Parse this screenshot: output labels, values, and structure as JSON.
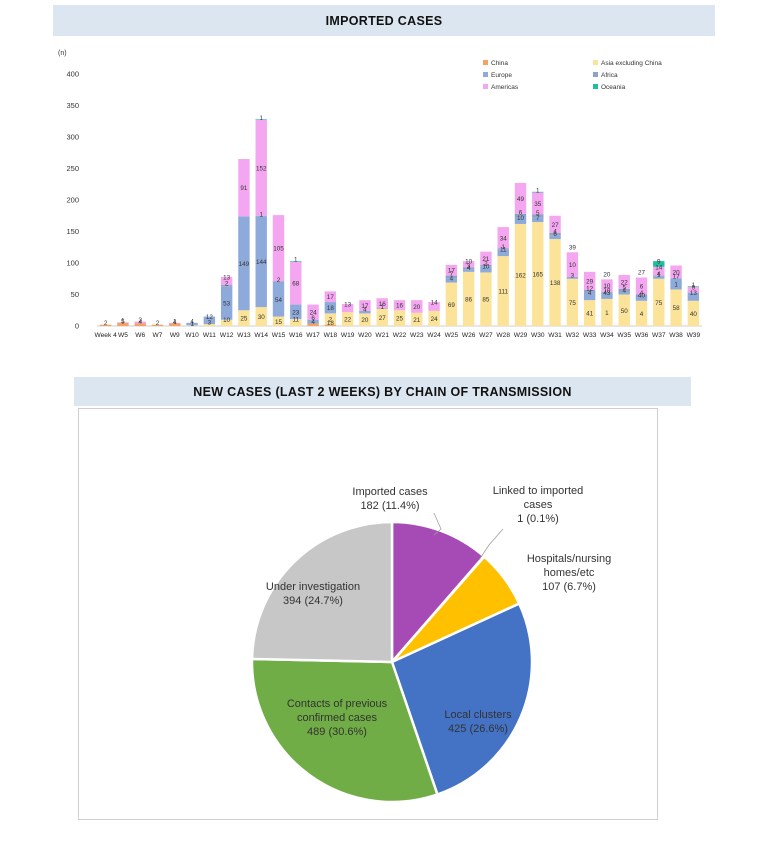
{
  "bar_title": "IMPORTED CASES",
  "pie_title": "NEW CASES (LAST 2 WEEKS) BY CHAIN OF TRANSMISSION",
  "chart_data": [
    {
      "type": "bar",
      "stacked": true,
      "title": "IMPORTED CASES",
      "ylabel": "(n)",
      "ylim": [
        0,
        400
      ],
      "yticks": [
        0,
        50,
        100,
        150,
        200,
        250,
        300,
        350,
        400
      ],
      "legend_position": "top-right",
      "categories": [
        "Week 4",
        "W5",
        "W6",
        "W7",
        "W9",
        "W10",
        "W11",
        "W12",
        "W13",
        "W14",
        "W15",
        "W16",
        "W17",
        "W18",
        "W19",
        "W20",
        "W21",
        "W22",
        "W23",
        "W24",
        "W25",
        "W26",
        "W27",
        "W28",
        "W29",
        "W30",
        "W31",
        "W32",
        "W33",
        "W34",
        "W35",
        "W36",
        "W37",
        "W38",
        "W39"
      ],
      "series": [
        {
          "name": "China",
          "color": "#f4a460",
          "values": [
            2,
            5,
            4,
            2,
            4,
            0,
            0,
            0,
            0,
            0,
            0,
            0,
            4,
            2,
            0,
            0,
            0,
            0,
            0,
            0,
            0,
            0,
            0,
            0,
            0,
            0,
            0,
            0,
            0,
            0,
            0,
            0,
            0,
            0,
            0
          ]
        },
        {
          "name": "Asia excluding China",
          "color": "#fbe49a",
          "values": [
            0,
            0,
            0,
            0,
            0,
            1,
            3,
            10,
            25,
            30,
            15,
            11,
            0,
            18,
            22,
            20,
            27,
            25,
            21,
            24,
            69,
            86,
            85,
            111,
            162,
            165,
            138,
            75,
            41,
            43,
            50,
            40,
            75,
            58,
            40
          ]
        },
        {
          "name": "Europe",
          "color": "#8eaadb",
          "values": [
            0,
            0,
            0,
            0,
            0,
            4,
            12,
            53,
            149,
            144,
            54,
            23,
            6,
            18,
            0,
            4,
            0,
            0,
            0,
            0,
            7,
            4,
            10,
            11,
            10,
            7,
            6,
            3,
            12,
            10,
            4,
            6,
            4,
            17,
            13
          ]
        },
        {
          "name": "Africa",
          "color": "#8ea1c9",
          "values": [
            0,
            0,
            0,
            0,
            0,
            0,
            0,
            2,
            0,
            1,
            2,
            0,
            0,
            0,
            0,
            0,
            1,
            0,
            0,
            0,
            4,
            3,
            2,
            1,
            6,
            5,
            4,
            0,
            4,
            1,
            5,
            4,
            1,
            1,
            0
          ]
        },
        {
          "name": "Americas",
          "color": "#f4a6f0",
          "values": [
            0,
            1,
            3,
            0,
            1,
            0,
            0,
            13,
            91,
            152,
            105,
            68,
            24,
            17,
            13,
            17,
            16,
            16,
            20,
            14,
            17,
            10,
            21,
            34,
            49,
            35,
            27,
            39,
            29,
            20,
            22,
            27,
            14,
            20,
            9
          ]
        },
        {
          "name": "Oceania",
          "color": "#1fbfa0",
          "values": [
            0,
            0,
            0,
            0,
            0,
            0,
            0,
            0,
            0,
            1,
            0,
            1,
            0,
            0,
            0,
            0,
            0,
            0,
            0,
            0,
            0,
            0,
            0,
            0,
            0,
            1,
            0,
            0,
            0,
            0,
            0,
            0,
            9,
            0,
            1
          ]
        }
      ],
      "data_labels": [
        {
          "x": "Week 4",
          "value": "2"
        },
        {
          "x": "W5",
          "value": "5"
        },
        {
          "x": "W5",
          "value": "1"
        },
        {
          "x": "W6",
          "value": "4"
        },
        {
          "x": "W6",
          "value": "3"
        },
        {
          "x": "W7",
          "value": "2"
        },
        {
          "x": "W9",
          "value": "4"
        },
        {
          "x": "W9",
          "value": "1"
        },
        {
          "x": "W10",
          "value": "1"
        },
        {
          "x": "W10",
          "value": "4"
        },
        {
          "x": "W11",
          "value": "3"
        },
        {
          "x": "W11",
          "value": "12"
        },
        {
          "x": "W12",
          "value": "10"
        },
        {
          "x": "W12",
          "value": "53"
        },
        {
          "x": "W12",
          "value": "2"
        },
        {
          "x": "W12",
          "value": "13"
        },
        {
          "x": "W13",
          "value": "25"
        },
        {
          "x": "W13",
          "value": "149"
        },
        {
          "x": "W13",
          "value": "91"
        },
        {
          "x": "W14",
          "value": "30"
        },
        {
          "x": "W14",
          "value": "144"
        },
        {
          "x": "W14",
          "value": "1"
        },
        {
          "x": "W14",
          "value": "152"
        },
        {
          "x": "W14",
          "value": "1"
        },
        {
          "x": "W15",
          "value": "15"
        },
        {
          "x": "W15",
          "value": "54"
        },
        {
          "x": "W15",
          "value": "2"
        },
        {
          "x": "W15",
          "value": "105"
        },
        {
          "x": "W16",
          "value": "11"
        },
        {
          "x": "W16",
          "value": "23"
        },
        {
          "x": "W16",
          "value": "68"
        },
        {
          "x": "W16",
          "value": "1"
        },
        {
          "x": "W17",
          "value": "4"
        },
        {
          "x": "W17",
          "value": "6"
        },
        {
          "x": "W17",
          "value": "24"
        },
        {
          "x": "W18",
          "value": "18"
        },
        {
          "x": "W18",
          "value": "2"
        },
        {
          "x": "W18",
          "value": "18"
        },
        {
          "x": "W18",
          "value": "17"
        },
        {
          "x": "W19",
          "value": "22"
        },
        {
          "x": "W19",
          "value": "13"
        },
        {
          "x": "W20",
          "value": "20"
        },
        {
          "x": "W20",
          "value": "4"
        },
        {
          "x": "W20",
          "value": "17"
        },
        {
          "x": "W21",
          "value": "27"
        },
        {
          "x": "W21",
          "value": "1"
        },
        {
          "x": "W21",
          "value": "16"
        },
        {
          "x": "W22",
          "value": "25"
        },
        {
          "x": "W22",
          "value": "16"
        },
        {
          "x": "W23",
          "value": "21"
        },
        {
          "x": "W23",
          "value": "20"
        },
        {
          "x": "W24",
          "value": "24"
        },
        {
          "x": "W24",
          "value": "14"
        },
        {
          "x": "W25",
          "value": "69"
        },
        {
          "x": "W25",
          "value": "4"
        },
        {
          "x": "W25",
          "value": "7"
        },
        {
          "x": "W25",
          "value": "17"
        },
        {
          "x": "W26",
          "value": "86"
        },
        {
          "x": "W26",
          "value": "4"
        },
        {
          "x": "W26",
          "value": "3"
        },
        {
          "x": "W26",
          "value": "10"
        },
        {
          "x": "W27",
          "value": "85"
        },
        {
          "x": "W27",
          "value": "10"
        },
        {
          "x": "W27",
          "value": "2"
        },
        {
          "x": "W27",
          "value": "21"
        },
        {
          "x": "W28",
          "value": "111"
        },
        {
          "x": "W28",
          "value": "11"
        },
        {
          "x": "W28",
          "value": "1"
        },
        {
          "x": "W28",
          "value": "34"
        },
        {
          "x": "W29",
          "value": "162"
        },
        {
          "x": "W29",
          "value": "10"
        },
        {
          "x": "W29",
          "value": "6"
        },
        {
          "x": "W29",
          "value": "49"
        },
        {
          "x": "W30",
          "value": "165"
        },
        {
          "x": "W30",
          "value": "7"
        },
        {
          "x": "W30",
          "value": "5"
        },
        {
          "x": "W30",
          "value": "35"
        },
        {
          "x": "W30",
          "value": "1"
        },
        {
          "x": "W31",
          "value": "138"
        },
        {
          "x": "W31",
          "value": "6"
        },
        {
          "x": "W31",
          "value": "4"
        },
        {
          "x": "W31",
          "value": "27"
        },
        {
          "x": "W32",
          "value": "75"
        },
        {
          "x": "W32",
          "value": "3"
        },
        {
          "x": "W32",
          "value": "10"
        },
        {
          "x": "W32",
          "value": "39"
        },
        {
          "x": "W33",
          "value": "41"
        },
        {
          "x": "W33",
          "value": "4"
        },
        {
          "x": "W33",
          "value": "12"
        },
        {
          "x": "W33",
          "value": "29"
        },
        {
          "x": "W34",
          "value": "1"
        },
        {
          "x": "W34",
          "value": "43"
        },
        {
          "x": "W34",
          "value": "10"
        },
        {
          "x": "W34",
          "value": "10"
        },
        {
          "x": "W34",
          "value": "20"
        },
        {
          "x": "W35",
          "value": "50"
        },
        {
          "x": "W35",
          "value": "4"
        },
        {
          "x": "W35",
          "value": "5"
        },
        {
          "x": "W35",
          "value": "22"
        },
        {
          "x": "W36",
          "value": "4"
        },
        {
          "x": "W36",
          "value": "40"
        },
        {
          "x": "W36",
          "value": "4"
        },
        {
          "x": "W36",
          "value": "6"
        },
        {
          "x": "W36",
          "value": "27"
        },
        {
          "x": "W37",
          "value": "75"
        },
        {
          "x": "W37",
          "value": "1"
        },
        {
          "x": "W37",
          "value": "4"
        },
        {
          "x": "W37",
          "value": "14"
        },
        {
          "x": "W37",
          "value": "9"
        },
        {
          "x": "W38",
          "value": "58"
        },
        {
          "x": "W38",
          "value": "1"
        },
        {
          "x": "W38",
          "value": "17"
        },
        {
          "x": "W38",
          "value": "20"
        },
        {
          "x": "W39",
          "value": "40"
        },
        {
          "x": "W39",
          "value": "13"
        },
        {
          "x": "W39",
          "value": "9"
        },
        {
          "x": "W39",
          "value": "1"
        }
      ]
    },
    {
      "type": "pie",
      "title": "NEW CASES (LAST 2 WEEKS) BY CHAIN OF TRANSMISSION",
      "slices": [
        {
          "label": "Imported cases",
          "value": 182,
          "display": "182 (11.4%)",
          "color": "#a64ab5"
        },
        {
          "label": "Linked to imported cases",
          "value": 1,
          "display": "1 (0.1%)",
          "color": "#ff2ea6"
        },
        {
          "label": "Hospitals/nursing homes/etc",
          "value": 107,
          "display": "107 (6.7%)",
          "color": "#ffc000"
        },
        {
          "label": "Local clusters",
          "value": 425,
          "display": "425 (26.6%)",
          "color": "#4472c4"
        },
        {
          "label": "Contacts of previous confirmed cases",
          "value": 489,
          "display": "489 (30.6%)",
          "color": "#70ad47"
        },
        {
          "label": "Under investigation",
          "value": 394,
          "display": "394 (24.7%)",
          "color": "#c7c7c7"
        }
      ]
    }
  ]
}
